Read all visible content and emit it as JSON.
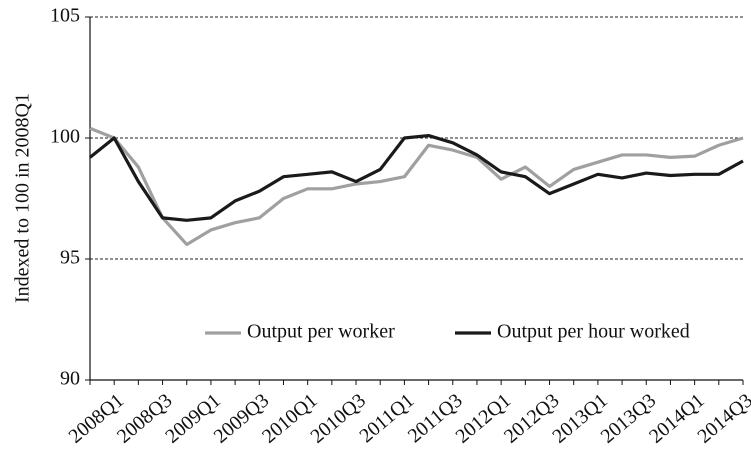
{
  "chart_data": {
    "type": "line",
    "y_label": "Indexed to 100 in 2008Q1",
    "categories": [
      null,
      "2008Q1",
      null,
      "2008Q3",
      null,
      "2009Q1",
      null,
      "2009Q3",
      null,
      "2010Q1",
      null,
      "2010Q3",
      null,
      "2011Q1",
      null,
      "2011Q3",
      null,
      "2012Q1",
      null,
      "2012Q3",
      null,
      "2013Q1",
      null,
      "2013Q3",
      null,
      "2014Q1",
      null,
      "2014Q3"
    ],
    "series": [
      {
        "name": "Output per worker",
        "color": "#a0a0a0",
        "values": [
          100.4,
          100.0,
          98.8,
          96.7,
          95.6,
          96.2,
          96.5,
          96.7,
          97.5,
          97.9,
          97.9,
          98.1,
          98.2,
          98.4,
          99.7,
          99.5,
          99.2,
          98.3,
          98.8,
          98.0,
          98.7,
          99.0,
          99.3,
          99.3,
          99.2,
          99.25,
          99.7,
          100.0
        ]
      },
      {
        "name": "Output per hour worked",
        "color": "#1a1a1a",
        "values": [
          99.2,
          100.0,
          98.2,
          96.7,
          96.6,
          96.7,
          97.4,
          97.8,
          98.4,
          98.5,
          98.6,
          98.2,
          98.7,
          100.0,
          100.1,
          99.8,
          99.3,
          98.6,
          98.4,
          97.7,
          98.1,
          98.5,
          98.35,
          98.55,
          98.45,
          98.5,
          98.5,
          99.05
        ]
      }
    ],
    "ylim": [
      90,
      105
    ],
    "yticks": [
      90,
      95,
      100,
      105
    ],
    "grid": true,
    "legend": "lower-center"
  }
}
